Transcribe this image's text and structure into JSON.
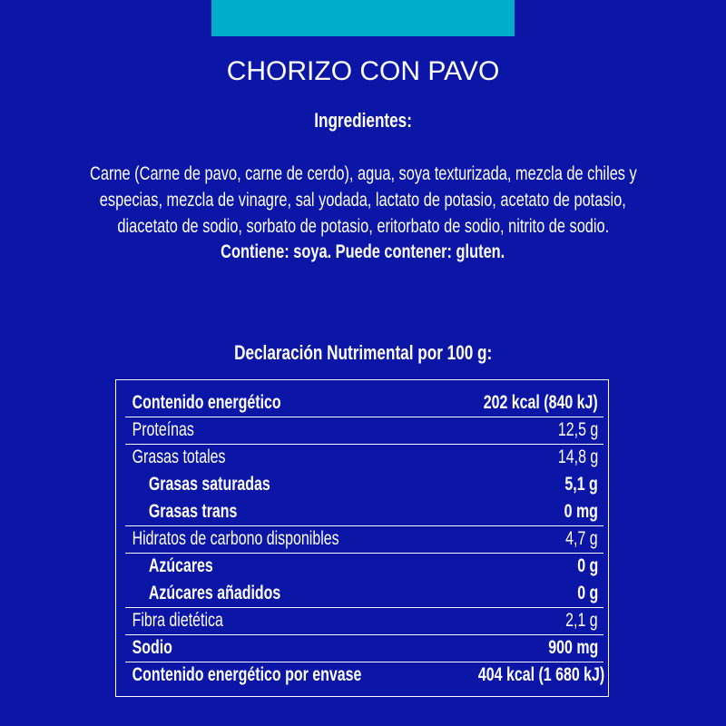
{
  "accent_color": "#00aecb",
  "background_color": "#0b16a6",
  "product_name": "CHORIZO CON PAVO",
  "ingredients": {
    "heading": "Ingredientes:",
    "lines": [
      "Carne (Carne de pavo, carne de cerdo), agua, soya texturizada, mezcla de chiles y",
      "especias, mezcla de vinagre, sal yodada, lactato de potasio, acetato de potasio,",
      "diacetato de sodio, sorbato de potasio, eritorbato de sodio, nitrito de sodio."
    ],
    "allergens": "Contiene: soya. Puede contener: gluten."
  },
  "nutrition": {
    "heading": "Declaración Nutrimental por 100 g:",
    "rows": [
      {
        "label": "Contenido energético",
        "value": "202 kcal (840 kJ)",
        "bold": true,
        "indent": false,
        "divider": true
      },
      {
        "label": "Proteínas",
        "value": "12,5 g",
        "bold": false,
        "indent": false,
        "divider": true
      },
      {
        "label": "Grasas totales",
        "value": "14,8 g",
        "bold": false,
        "indent": false,
        "divider": false
      },
      {
        "label": "Grasas saturadas",
        "value": "5,1 g",
        "bold": true,
        "indent": true,
        "divider": false
      },
      {
        "label": "Grasas trans",
        "value": "0 mg",
        "bold": true,
        "indent": true,
        "divider": true
      },
      {
        "label": "Hidratos de carbono disponibles",
        "value": "4,7 g",
        "bold": false,
        "indent": false,
        "divider": true
      },
      {
        "label": "Azúcares",
        "value": "0 g",
        "bold": true,
        "indent": true,
        "divider": false
      },
      {
        "label": "Azúcares añadidos",
        "value": "0 g",
        "bold": true,
        "indent": true,
        "divider": true
      },
      {
        "label": "Fibra dietética",
        "value": "2,1 g",
        "bold": false,
        "indent": false,
        "divider": true
      },
      {
        "label": "Sodio",
        "value": "900 mg",
        "bold": true,
        "indent": false,
        "divider": true
      },
      {
        "label": "Contenido energético por envase",
        "value": "404 kcal (1 680 kJ)",
        "bold": true,
        "indent": false,
        "divider": false
      }
    ]
  }
}
